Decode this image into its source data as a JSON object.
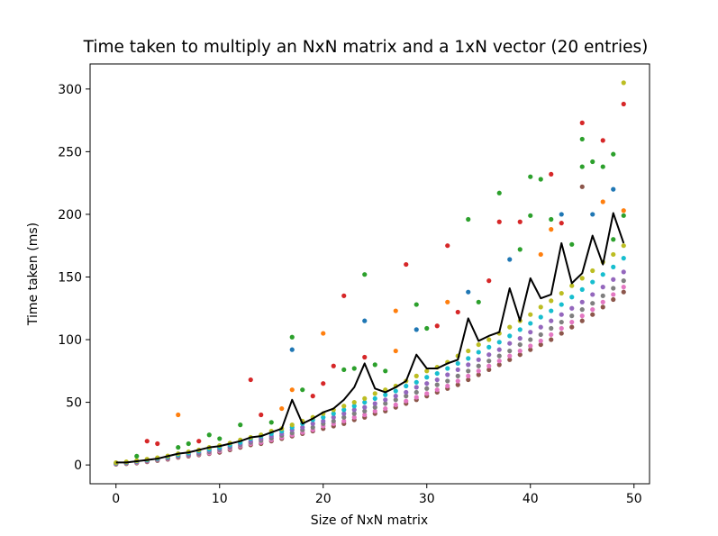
{
  "chart_data": {
    "type": "scatter",
    "title": "Time taken to multiply an NxN matrix and a 1xN vector (20 entries)",
    "xlabel": "Size of NxN matrix",
    "ylabel": "Time taken (ms)",
    "xlim": [
      -2.5,
      51.5
    ],
    "ylim": [
      -15,
      320
    ],
    "xticks": [
      0,
      10,
      20,
      30,
      40,
      50
    ],
    "yticks": [
      0,
      50,
      100,
      150,
      200,
      250,
      300
    ],
    "grid": false,
    "legend": "none",
    "palette": [
      "#1f77b4",
      "#ff7f0e",
      "#2ca02c",
      "#d62728",
      "#9467bd",
      "#8c564b",
      "#e377c2",
      "#7f7f7f",
      "#bcbd22",
      "#17becf"
    ],
    "mean_line": {
      "color": "#000000",
      "x": [
        0,
        1,
        2,
        3,
        4,
        5,
        6,
        7,
        8,
        9,
        10,
        11,
        12,
        13,
        14,
        15,
        16,
        17,
        18,
        19,
        20,
        21,
        22,
        23,
        24,
        25,
        26,
        27,
        28,
        29,
        30,
        31,
        32,
        33,
        34,
        35,
        36,
        37,
        38,
        39,
        40,
        41,
        42,
        43,
        44,
        45,
        46,
        47,
        48,
        49
      ],
      "y": [
        2,
        2,
        3,
        4,
        5,
        7,
        9,
        10,
        12,
        14,
        15,
        17,
        19,
        22,
        23,
        26,
        29,
        52,
        33,
        37,
        42,
        45,
        52,
        62,
        81,
        61,
        58,
        62,
        67,
        88,
        77,
        77,
        81,
        84,
        117,
        99,
        103,
        106,
        141,
        115,
        149,
        133,
        136,
        177,
        145,
        153,
        183,
        160,
        201,
        177
      ]
    },
    "spread_series": [
      {
        "color": "#8c564b",
        "y": [
          0.5,
          1,
          1.5,
          2.5,
          3.5,
          4.5,
          6,
          7,
          8,
          9,
          10,
          12,
          14,
          16,
          17,
          19,
          21,
          23,
          25,
          27,
          29,
          31,
          33,
          36,
          38,
          41,
          43,
          46,
          49,
          52,
          55,
          58,
          61,
          64,
          68,
          72,
          76,
          80,
          84,
          88,
          92,
          96,
          100,
          105,
          110,
          115,
          120,
          126,
          132,
          138
        ]
      },
      {
        "color": "#e377c2",
        "y": [
          0.8,
          1.3,
          2,
          3,
          4,
          5,
          6.5,
          7.5,
          8.5,
          9.5,
          11,
          13,
          15,
          17,
          18,
          20,
          22,
          24,
          26,
          28,
          31,
          33,
          35,
          38,
          40,
          43,
          45,
          48,
          51,
          54,
          57,
          60,
          63,
          67,
          71,
          75,
          79,
          83,
          87,
          91,
          95,
          99,
          104,
          109,
          114,
          119,
          124,
          130,
          136,
          142
        ]
      },
      {
        "color": "#7f7f7f",
        "y": [
          1,
          1.5,
          2.3,
          3.3,
          4.3,
          5.5,
          7,
          8,
          9,
          10.5,
          12,
          14,
          16,
          18,
          19.5,
          21.5,
          23.5,
          25.5,
          28,
          30,
          33,
          35,
          38,
          41,
          43,
          46,
          49,
          52,
          55,
          58,
          61,
          64,
          67,
          71,
          75,
          79,
          83,
          87,
          91,
          96,
          100,
          104,
          109,
          114,
          119,
          124,
          129,
          135,
          141,
          147
        ]
      },
      {
        "color": "#9467bd",
        "y": [
          1.2,
          1.8,
          2.6,
          3.6,
          4.8,
          6,
          7.5,
          8.5,
          10,
          11.5,
          13,
          15,
          17,
          19,
          21,
          23,
          25,
          28,
          30,
          33,
          35,
          38,
          41,
          44,
          46,
          49,
          52,
          55,
          58,
          62,
          65,
          68,
          72,
          76,
          80,
          84,
          88,
          92,
          97,
          101,
          106,
          110,
          115,
          120,
          125,
          130,
          136,
          142,
          148,
          154
        ]
      },
      {
        "color": "#17becf",
        "y": [
          1.5,
          2.1,
          3,
          4,
          5.2,
          6.5,
          8,
          9.5,
          11,
          12.5,
          14,
          16,
          18,
          21,
          23,
          25,
          27,
          30,
          33,
          36,
          38,
          41,
          44,
          47,
          50,
          53,
          56,
          59,
          63,
          66,
          70,
          73,
          77,
          81,
          85,
          90,
          94,
          98,
          103,
          108,
          113,
          118,
          123,
          128,
          134,
          140,
          146,
          152,
          158,
          165
        ]
      },
      {
        "color": "#bcbd22",
        "y": [
          1.8,
          2.5,
          3.4,
          4.6,
          5.8,
          7.2,
          9,
          10.5,
          12,
          14,
          15.5,
          17.5,
          20,
          22,
          24,
          27,
          29,
          32,
          35,
          38,
          41,
          44,
          47,
          50,
          53,
          57,
          60,
          63,
          67,
          71,
          75,
          78,
          82,
          87,
          91,
          96,
          100,
          105,
          110,
          115,
          120,
          126,
          131,
          137,
          143,
          149,
          155,
          162,
          168,
          175
        ]
      }
    ],
    "scatter_points": [
      {
        "x": 3,
        "y": 19,
        "c": "#d62728"
      },
      {
        "x": 4,
        "y": 17,
        "c": "#d62728"
      },
      {
        "x": 2,
        "y": 7,
        "c": "#2ca02c"
      },
      {
        "x": 6,
        "y": 40,
        "c": "#ff7f0e"
      },
      {
        "x": 6,
        "y": 14,
        "c": "#2ca02c"
      },
      {
        "x": 7,
        "y": 17,
        "c": "#2ca02c"
      },
      {
        "x": 8,
        "y": 19,
        "c": "#d62728"
      },
      {
        "x": 9,
        "y": 24,
        "c": "#2ca02c"
      },
      {
        "x": 10,
        "y": 21,
        "c": "#2ca02c"
      },
      {
        "x": 12,
        "y": 32,
        "c": "#2ca02c"
      },
      {
        "x": 13,
        "y": 68,
        "c": "#d62728"
      },
      {
        "x": 14,
        "y": 40,
        "c": "#d62728"
      },
      {
        "x": 15,
        "y": 34,
        "c": "#2ca02c"
      },
      {
        "x": 16,
        "y": 45,
        "c": "#ff7f0e"
      },
      {
        "x": 17,
        "y": 102,
        "c": "#2ca02c"
      },
      {
        "x": 17,
        "y": 92,
        "c": "#1f77b4"
      },
      {
        "x": 17,
        "y": 60,
        "c": "#ff7f0e"
      },
      {
        "x": 18,
        "y": 60,
        "c": "#2ca02c"
      },
      {
        "x": 19,
        "y": 55,
        "c": "#d62728"
      },
      {
        "x": 20,
        "y": 105,
        "c": "#ff7f0e"
      },
      {
        "x": 20,
        "y": 65,
        "c": "#d62728"
      },
      {
        "x": 21,
        "y": 79,
        "c": "#d62728"
      },
      {
        "x": 22,
        "y": 135,
        "c": "#d62728"
      },
      {
        "x": 22,
        "y": 76,
        "c": "#2ca02c"
      },
      {
        "x": 23,
        "y": 77,
        "c": "#2ca02c"
      },
      {
        "x": 24,
        "y": 152,
        "c": "#2ca02c"
      },
      {
        "x": 24,
        "y": 115,
        "c": "#1f77b4"
      },
      {
        "x": 24,
        "y": 86,
        "c": "#d62728"
      },
      {
        "x": 25,
        "y": 80,
        "c": "#2ca02c"
      },
      {
        "x": 26,
        "y": 75,
        "c": "#2ca02c"
      },
      {
        "x": 27,
        "y": 123,
        "c": "#ff7f0e"
      },
      {
        "x": 27,
        "y": 91,
        "c": "#ff7f0e"
      },
      {
        "x": 28,
        "y": 160,
        "c": "#d62728"
      },
      {
        "x": 29,
        "y": 128,
        "c": "#2ca02c"
      },
      {
        "x": 29,
        "y": 108,
        "c": "#1f77b4"
      },
      {
        "x": 30,
        "y": 109,
        "c": "#2ca02c"
      },
      {
        "x": 31,
        "y": 111,
        "c": "#d62728"
      },
      {
        "x": 32,
        "y": 175,
        "c": "#d62728"
      },
      {
        "x": 32,
        "y": 130,
        "c": "#ff7f0e"
      },
      {
        "x": 33,
        "y": 122,
        "c": "#d62728"
      },
      {
        "x": 34,
        "y": 196,
        "c": "#2ca02c"
      },
      {
        "x": 34,
        "y": 138,
        "c": "#1f77b4"
      },
      {
        "x": 35,
        "y": 130,
        "c": "#2ca02c"
      },
      {
        "x": 36,
        "y": 147,
        "c": "#d62728"
      },
      {
        "x": 37,
        "y": 217,
        "c": "#2ca02c"
      },
      {
        "x": 37,
        "y": 194,
        "c": "#d62728"
      },
      {
        "x": 38,
        "y": 164,
        "c": "#1f77b4"
      },
      {
        "x": 39,
        "y": 194,
        "c": "#d62728"
      },
      {
        "x": 39,
        "y": 172,
        "c": "#2ca02c"
      },
      {
        "x": 40,
        "y": 230,
        "c": "#2ca02c"
      },
      {
        "x": 40,
        "y": 199,
        "c": "#2ca02c"
      },
      {
        "x": 41,
        "y": 228,
        "c": "#2ca02c"
      },
      {
        "x": 41,
        "y": 168,
        "c": "#ff7f0e"
      },
      {
        "x": 42,
        "y": 232,
        "c": "#d62728"
      },
      {
        "x": 42,
        "y": 196,
        "c": "#2ca02c"
      },
      {
        "x": 42,
        "y": 188,
        "c": "#ff7f0e"
      },
      {
        "x": 43,
        "y": 200,
        "c": "#1f77b4"
      },
      {
        "x": 43,
        "y": 193,
        "c": "#d62728"
      },
      {
        "x": 44,
        "y": 176,
        "c": "#2ca02c"
      },
      {
        "x": 45,
        "y": 273,
        "c": "#d62728"
      },
      {
        "x": 45,
        "y": 260,
        "c": "#2ca02c"
      },
      {
        "x": 45,
        "y": 238,
        "c": "#2ca02c"
      },
      {
        "x": 45,
        "y": 222,
        "c": "#8c564b"
      },
      {
        "x": 46,
        "y": 242,
        "c": "#2ca02c"
      },
      {
        "x": 46,
        "y": 200,
        "c": "#1f77b4"
      },
      {
        "x": 47,
        "y": 259,
        "c": "#d62728"
      },
      {
        "x": 47,
        "y": 238,
        "c": "#2ca02c"
      },
      {
        "x": 47,
        "y": 210,
        "c": "#ff7f0e"
      },
      {
        "x": 48,
        "y": 248,
        "c": "#2ca02c"
      },
      {
        "x": 48,
        "y": 220,
        "c": "#1f77b4"
      },
      {
        "x": 48,
        "y": 180,
        "c": "#2ca02c"
      },
      {
        "x": 49,
        "y": 305,
        "c": "#bcbd22"
      },
      {
        "x": 49,
        "y": 288,
        "c": "#d62728"
      },
      {
        "x": 49,
        "y": 203,
        "c": "#ff7f0e"
      },
      {
        "x": 49,
        "y": 199,
        "c": "#2ca02c"
      }
    ]
  }
}
